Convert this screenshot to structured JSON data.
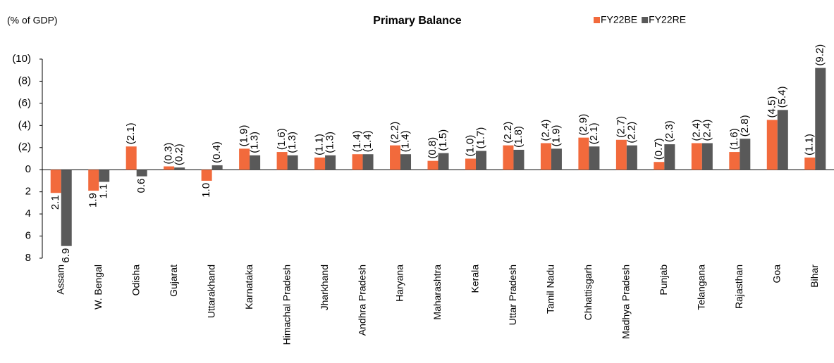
{
  "chart_data": {
    "type": "bar",
    "title": "Primary Balance",
    "y_label": "(% of GDP)",
    "categories": [
      "Assam",
      "W. Bengal",
      "Odisha",
      "Gujarat",
      "Uttarakhand",
      "Karnataka",
      "Himachal Pradesh",
      "Jharkhand",
      "Andhra Pradesh",
      "Haryana",
      "Maharashtra",
      "Kerala",
      "Uttar Pradesh",
      "Tamil Nadu",
      "Chhattisgarh",
      "Madhya Pradesh",
      "Punjab",
      "Telangana",
      "Rajasthan",
      "Goa",
      "Bihar"
    ],
    "series": [
      {
        "name": "FY22BE",
        "color": "#f26a3c",
        "values": [
          2.1,
          1.9,
          -2.1,
          -0.3,
          1.0,
          -1.9,
          -1.6,
          -1.1,
          -1.4,
          -2.2,
          -0.8,
          -1.0,
          -2.2,
          -2.4,
          -2.9,
          -2.7,
          -0.7,
          -2.4,
          -1.6,
          -4.5,
          -1.1
        ],
        "value_labels": [
          "2.1",
          "1.9",
          "(2.1)",
          "(0.3)",
          "1.0",
          "(1.9)",
          "(1.6)",
          "(1.1)",
          "(1.4)",
          "(2.2)",
          "(0.8)",
          "(1.0)",
          "(2.2)",
          "(2.4)",
          "(2.9)",
          "(2.7)",
          "(0.7)",
          "(2.4)",
          "(1.6)",
          "(4.5)",
          "(1.1)"
        ]
      },
      {
        "name": "FY22RE",
        "color": "#595959",
        "values": [
          6.9,
          1.1,
          0.6,
          -0.2,
          -0.4,
          -1.3,
          -1.3,
          -1.3,
          -1.4,
          -1.4,
          -1.5,
          -1.7,
          -1.8,
          -1.9,
          -2.1,
          -2.2,
          -2.3,
          -2.4,
          -2.8,
          -5.4,
          -9.2
        ],
        "value_labels": [
          "6.9",
          "1.1",
          "0.6",
          "(0.2)",
          "(0.4)",
          "(1.3)",
          "(1.3)",
          "(1.3)",
          "(1.4)",
          "(1.4)",
          "(1.5)",
          "(1.7)",
          "(1.8)",
          "(1.9)",
          "(2.1)",
          "(2.2)",
          "(2.3)",
          "(2.4)",
          "(2.8)",
          "(5.4)",
          "(9.2)"
        ]
      }
    ],
    "ylim": [
      8,
      -10
    ],
    "yticks": [
      8,
      6,
      4,
      2,
      0,
      {
        "value": -2,
        "label": "(2)"
      },
      {
        "value": -4,
        "label": "(4)"
      },
      {
        "value": -6,
        "label": "(6)"
      },
      {
        "value": -8,
        "label": "(8)"
      },
      {
        "value": -10,
        "label": "(10)"
      }
    ],
    "legend": "top-right"
  }
}
